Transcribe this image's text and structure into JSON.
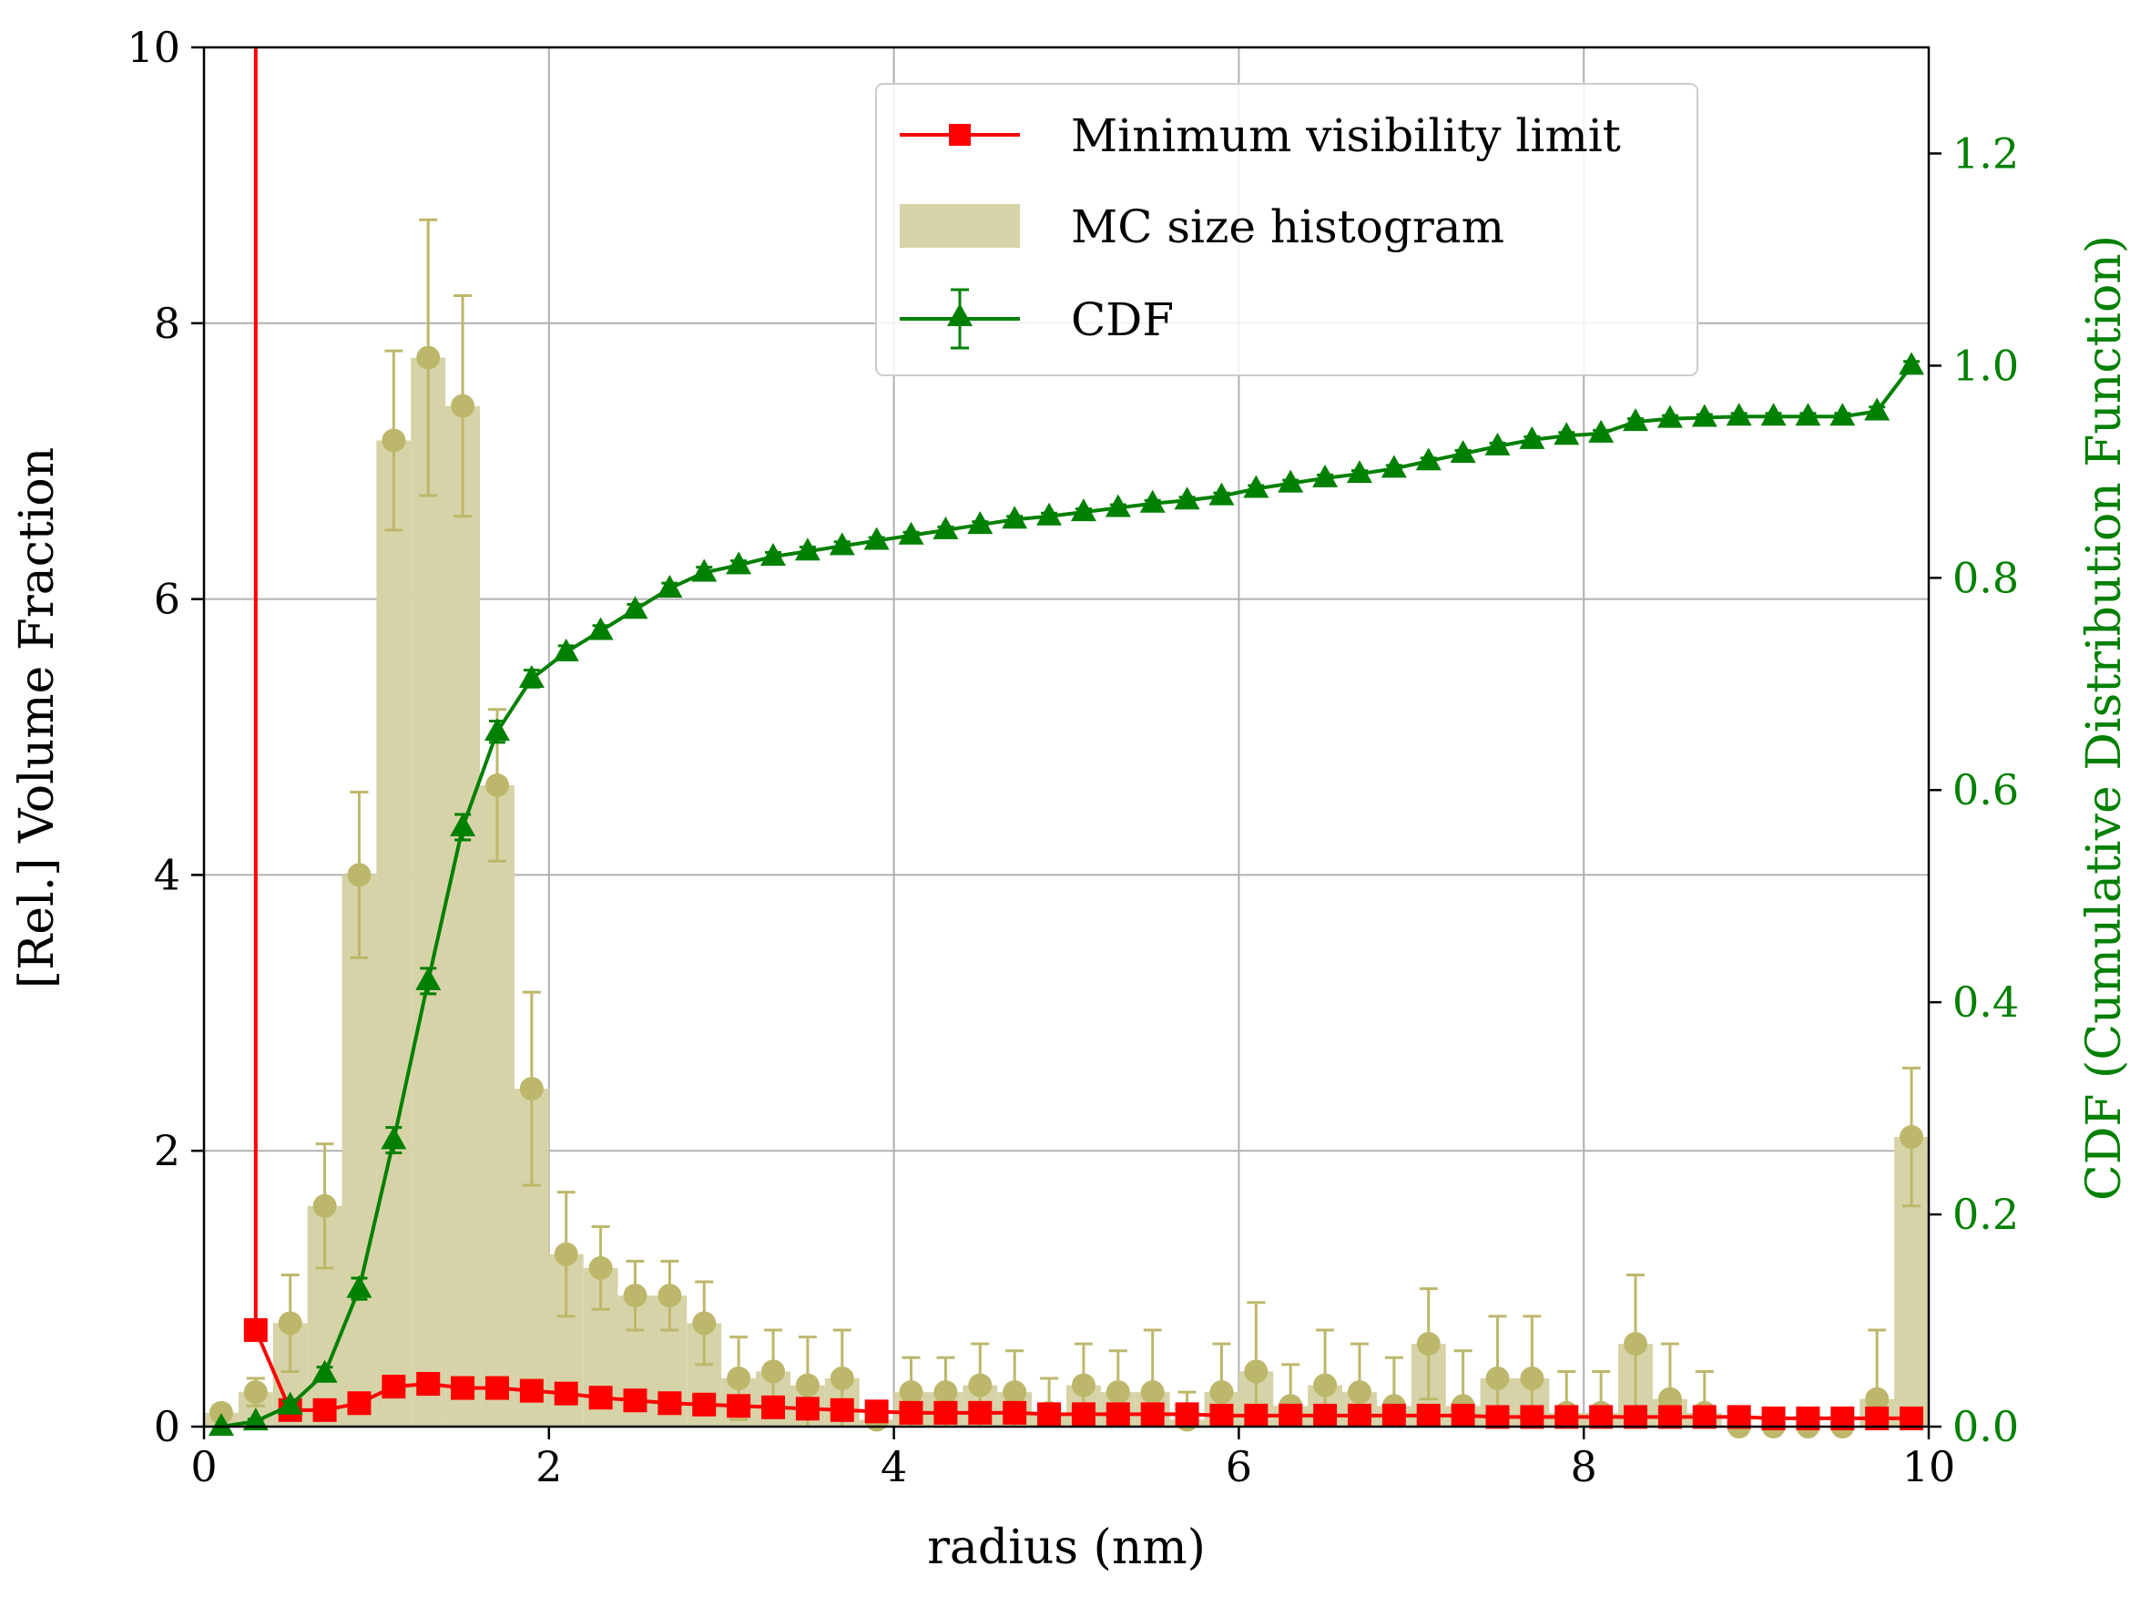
{
  "colors": {
    "background": "#ffffff",
    "grid": "#b0b0b0",
    "histogram_fill": "#d7d3a8",
    "histogram_point": "#bdb76b",
    "minvis": "#ff0000",
    "cdf": "#008000",
    "axis": "#000000"
  },
  "chart_data": {
    "type": "bar",
    "xlabel": "radius (nm)",
    "ylabel": "[Rel.] Volume Fraction",
    "y2label": "CDF (Cumulative Distribution Function)",
    "xlim": [
      0,
      10
    ],
    "ylim": [
      0,
      10
    ],
    "y2lim": [
      0,
      1.3
    ],
    "xticks": [
      0,
      2,
      4,
      6,
      8,
      10
    ],
    "xtick_labels": [
      "0",
      "2",
      "4",
      "6",
      "8",
      "10"
    ],
    "yticks": [
      0,
      2,
      4,
      6,
      8,
      10
    ],
    "ytick_labels": [
      "0",
      "2",
      "4",
      "6",
      "8",
      "10"
    ],
    "y2ticks": [
      0,
      0.2,
      0.4,
      0.6,
      0.8,
      1.0,
      1.2
    ],
    "y2tick_labels": [
      "0.0",
      "0.2",
      "0.4",
      "0.6",
      "0.8",
      "1.0",
      "1.2"
    ],
    "grid": true,
    "legend_position": "top-center",
    "legend": [
      "Minimum visibility limit",
      "MC size histogram",
      "CDF"
    ],
    "x": [
      0.1,
      0.3,
      0.5,
      0.7,
      0.9,
      1.1,
      1.3,
      1.5,
      1.7,
      1.9,
      2.1,
      2.3,
      2.5,
      2.7,
      2.9,
      3.1,
      3.3,
      3.5,
      3.7,
      3.9,
      4.1,
      4.3,
      4.5,
      4.7,
      4.9,
      5.1,
      5.3,
      5.5,
      5.7,
      5.9,
      6.1,
      6.3,
      6.5,
      6.7,
      6.9,
      7.1,
      7.3,
      7.5,
      7.7,
      7.9,
      8.1,
      8.3,
      8.5,
      8.7,
      8.9,
      9.1,
      9.3,
      9.5,
      9.7,
      9.9
    ],
    "series": [
      {
        "name": "MC size histogram",
        "kind": "bar",
        "values": [
          0.1,
          0.25,
          0.75,
          1.6,
          4.0,
          7.15,
          7.75,
          7.4,
          4.65,
          2.45,
          1.25,
          1.15,
          0.95,
          0.95,
          0.75,
          0.35,
          0.4,
          0.3,
          0.35,
          0.05,
          0.25,
          0.25,
          0.3,
          0.25,
          0.1,
          0.3,
          0.25,
          0.25,
          0.05,
          0.25,
          0.4,
          0.15,
          0.3,
          0.25,
          0.15,
          0.6,
          0.15,
          0.35,
          0.35,
          0.1,
          0.1,
          0.6,
          0.2,
          0.1,
          0.0,
          0.0,
          0.0,
          0.0,
          0.2,
          2.1
        ],
        "errors": [
          0.05,
          0.1,
          0.35,
          0.45,
          0.6,
          0.65,
          1.0,
          0.8,
          0.55,
          0.7,
          0.45,
          0.3,
          0.25,
          0.25,
          0.3,
          0.3,
          0.3,
          0.35,
          0.35,
          0.05,
          0.25,
          0.25,
          0.3,
          0.3,
          0.25,
          0.3,
          0.3,
          0.45,
          0.2,
          0.35,
          0.5,
          0.3,
          0.4,
          0.35,
          0.35,
          0.4,
          0.4,
          0.45,
          0.45,
          0.3,
          0.3,
          0.5,
          0.4,
          0.3,
          0.0,
          0.0,
          0.0,
          0.0,
          0.5,
          0.5
        ]
      },
      {
        "name": "Minimum visibility limit",
        "kind": "line",
        "x": [
          0.3,
          0.5,
          0.7,
          0.9,
          1.1,
          1.3,
          1.5,
          1.7,
          1.9,
          2.1,
          2.3,
          2.5,
          2.7,
          2.9,
          3.1,
          3.3,
          3.5,
          3.7,
          3.9,
          4.1,
          4.3,
          4.5,
          4.7,
          4.9,
          5.1,
          5.3,
          5.5,
          5.7,
          5.9,
          6.1,
          6.3,
          6.5,
          6.7,
          6.9,
          7.1,
          7.3,
          7.5,
          7.7,
          7.9,
          8.1,
          8.3,
          8.5,
          8.7,
          8.9,
          9.1,
          9.3,
          9.5,
          9.7,
          9.9
        ],
        "values": [
          0.7,
          0.12,
          0.12,
          0.17,
          0.29,
          0.31,
          0.28,
          0.28,
          0.26,
          0.24,
          0.21,
          0.19,
          0.17,
          0.16,
          0.15,
          0.14,
          0.13,
          0.12,
          0.11,
          0.1,
          0.1,
          0.1,
          0.1,
          0.09,
          0.09,
          0.09,
          0.09,
          0.09,
          0.08,
          0.08,
          0.08,
          0.08,
          0.08,
          0.08,
          0.08,
          0.08,
          0.07,
          0.07,
          0.07,
          0.07,
          0.07,
          0.07,
          0.07,
          0.07,
          0.06,
          0.06,
          0.06,
          0.06,
          0.06
        ],
        "lead_in": {
          "x": 0.3,
          "from_y": 10,
          "to_y": 0.7
        }
      },
      {
        "name": "CDF",
        "kind": "line",
        "axis": "right",
        "values": [
          0.0,
          0.005,
          0.02,
          0.05,
          0.13,
          0.27,
          0.42,
          0.565,
          0.655,
          0.705,
          0.73,
          0.75,
          0.77,
          0.79,
          0.805,
          0.812,
          0.82,
          0.825,
          0.83,
          0.835,
          0.84,
          0.845,
          0.85,
          0.855,
          0.858,
          0.862,
          0.866,
          0.87,
          0.873,
          0.877,
          0.884,
          0.889,
          0.894,
          0.898,
          0.903,
          0.91,
          0.917,
          0.924,
          0.93,
          0.934,
          0.936,
          0.947,
          0.95,
          0.951,
          0.952,
          0.952,
          0.952,
          0.952,
          0.957,
          1.0
        ],
        "errors": [
          0.0,
          0.002,
          0.004,
          0.006,
          0.01,
          0.012,
          0.012,
          0.012,
          0.01,
          0.008,
          0.006,
          0.005,
          0.005,
          0.005,
          0.005,
          0.004,
          0.004,
          0.004,
          0.004,
          0.003,
          0.003,
          0.003,
          0.003,
          0.003,
          0.003,
          0.003,
          0.003,
          0.003,
          0.003,
          0.003,
          0.003,
          0.003,
          0.003,
          0.003,
          0.003,
          0.003,
          0.003,
          0.003,
          0.003,
          0.003,
          0.003,
          0.003,
          0.003,
          0.003,
          0.003,
          0.003,
          0.003,
          0.003,
          0.004,
          0.004
        ]
      }
    ]
  }
}
